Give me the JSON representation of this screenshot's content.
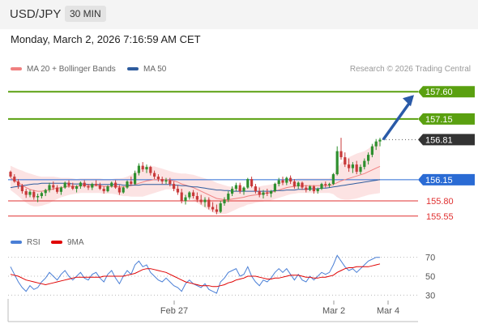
{
  "header": {
    "pair": "USD/JPY",
    "timeframe": "30 MIN"
  },
  "timestamp": "Monday, March 2, 2026 7:16:59 AM CET",
  "legend": {
    "ma20": {
      "label": "MA 20 + Bollinger Bands",
      "color": "#f08080"
    },
    "ma50": {
      "label": "MA 50",
      "color": "#2e5c9e"
    }
  },
  "credit": "Research © 2026 Trading Central",
  "rsi_legend": {
    "rsi": {
      "label": "RSI",
      "color": "#4a7fd6"
    },
    "ma9": {
      "label": "9MA",
      "color": "#e00000"
    }
  },
  "chart_data": {
    "type": "candlestick",
    "price_axis": {
      "min": 155.4,
      "max": 157.75
    },
    "levels": [
      {
        "label": "157.60",
        "value": 157.6,
        "role": "resistance",
        "color": "#5aa010"
      },
      {
        "label": "157.15",
        "value": 157.15,
        "role": "resistance",
        "color": "#5aa010"
      },
      {
        "label": "156.81",
        "value": 156.81,
        "role": "last",
        "color": "#333333"
      },
      {
        "label": "156.15",
        "value": 156.15,
        "role": "pivot",
        "color": "#2a6bd4"
      },
      {
        "label": "155.80",
        "value": 155.8,
        "role": "support",
        "color": "#e03030"
      },
      {
        "label": "155.55",
        "value": 155.55,
        "role": "support",
        "color": "#e03030"
      }
    ],
    "arrow": {
      "from": 156.81,
      "to": 157.6,
      "color": "#2a5aa8"
    },
    "x_ticks": [
      "Feb 27",
      "Mar 2",
      "Mar 4"
    ],
    "candles": [
      [
        156.28,
        156.3,
        156.18,
        156.2
      ],
      [
        156.2,
        156.24,
        156.1,
        156.12
      ],
      [
        156.12,
        156.16,
        156.0,
        156.05
      ],
      [
        156.05,
        156.08,
        155.92,
        155.96
      ],
      [
        155.96,
        156.0,
        155.85,
        155.9
      ],
      [
        155.9,
        155.98,
        155.86,
        155.95
      ],
      [
        155.95,
        155.98,
        155.82,
        155.86
      ],
      [
        155.86,
        155.92,
        155.78,
        155.88
      ],
      [
        155.88,
        155.95,
        155.84,
        155.93
      ],
      [
        155.93,
        156.0,
        155.88,
        155.98
      ],
      [
        155.98,
        156.1,
        155.94,
        156.06
      ],
      [
        156.06,
        156.12,
        155.98,
        156.02
      ],
      [
        156.02,
        156.06,
        155.92,
        155.95
      ],
      [
        155.95,
        156.04,
        155.9,
        156.02
      ],
      [
        156.02,
        156.12,
        156.0,
        156.1
      ],
      [
        156.1,
        156.14,
        156.02,
        156.05
      ],
      [
        156.05,
        156.1,
        155.98,
        156.0
      ],
      [
        156.0,
        156.06,
        155.94,
        156.04
      ],
      [
        156.04,
        156.12,
        156.0,
        156.1
      ],
      [
        156.1,
        156.14,
        156.02,
        156.04
      ],
      [
        156.04,
        156.08,
        155.98,
        156.02
      ],
      [
        156.02,
        156.1,
        155.98,
        156.08
      ],
      [
        156.08,
        156.14,
        156.04,
        156.06
      ],
      [
        156.06,
        156.1,
        155.98,
        156.0
      ],
      [
        156.0,
        156.04,
        155.92,
        155.96
      ],
      [
        155.96,
        156.06,
        155.94,
        156.04
      ],
      [
        156.04,
        156.12,
        156.02,
        156.1
      ],
      [
        156.1,
        156.14,
        156.0,
        156.02
      ],
      [
        156.02,
        156.06,
        155.9,
        155.94
      ],
      [
        155.94,
        156.04,
        155.92,
        156.02
      ],
      [
        156.02,
        156.14,
        156.0,
        156.12
      ],
      [
        156.12,
        156.2,
        156.06,
        156.08
      ],
      [
        156.08,
        156.3,
        156.06,
        156.26
      ],
      [
        156.26,
        156.42,
        156.22,
        156.38
      ],
      [
        156.38,
        156.44,
        156.28,
        156.32
      ],
      [
        156.32,
        156.4,
        156.26,
        156.36
      ],
      [
        156.36,
        156.38,
        156.22,
        156.26
      ],
      [
        156.26,
        156.3,
        156.16,
        156.2
      ],
      [
        156.2,
        156.24,
        156.12,
        156.16
      ],
      [
        156.16,
        156.2,
        156.08,
        156.12
      ],
      [
        156.12,
        156.18,
        156.08,
        156.14
      ],
      [
        156.14,
        156.18,
        156.04,
        156.08
      ],
      [
        156.08,
        156.12,
        155.96,
        156.0
      ],
      [
        156.0,
        156.06,
        155.9,
        155.94
      ],
      [
        155.94,
        156.0,
        155.76,
        155.8
      ],
      [
        155.8,
        155.9,
        155.74,
        155.86
      ],
      [
        155.86,
        155.96,
        155.82,
        155.94
      ],
      [
        155.94,
        155.98,
        155.84,
        155.88
      ],
      [
        155.88,
        155.94,
        155.78,
        155.82
      ],
      [
        155.82,
        155.9,
        155.74,
        155.78
      ],
      [
        155.78,
        155.86,
        155.7,
        155.82
      ],
      [
        155.82,
        155.86,
        155.66,
        155.7
      ],
      [
        155.7,
        155.78,
        155.62,
        155.66
      ],
      [
        155.66,
        155.74,
        155.58,
        155.62
      ],
      [
        155.62,
        155.8,
        155.6,
        155.76
      ],
      [
        155.76,
        155.86,
        155.72,
        155.82
      ],
      [
        155.82,
        155.96,
        155.78,
        155.92
      ],
      [
        155.92,
        156.04,
        155.88,
        156.0
      ],
      [
        156.0,
        156.1,
        155.96,
        156.06
      ],
      [
        156.06,
        156.1,
        155.92,
        155.96
      ],
      [
        155.96,
        156.04,
        155.9,
        156.02
      ],
      [
        156.02,
        156.18,
        156.0,
        156.16
      ],
      [
        156.16,
        156.2,
        156.02,
        156.04
      ],
      [
        156.04,
        156.08,
        155.92,
        155.96
      ],
      [
        155.96,
        156.02,
        155.86,
        155.9
      ],
      [
        155.9,
        155.98,
        155.84,
        155.94
      ],
      [
        155.94,
        156.0,
        155.88,
        155.92
      ],
      [
        155.92,
        155.98,
        155.86,
        155.96
      ],
      [
        155.96,
        156.1,
        155.94,
        156.08
      ],
      [
        156.08,
        156.18,
        156.04,
        156.14
      ],
      [
        156.14,
        156.2,
        156.06,
        156.1
      ],
      [
        156.1,
        156.2,
        156.06,
        156.18
      ],
      [
        156.18,
        156.22,
        156.08,
        156.12
      ],
      [
        156.12,
        156.16,
        156.0,
        156.04
      ],
      [
        156.04,
        156.12,
        156.0,
        156.1
      ],
      [
        156.1,
        156.12,
        155.98,
        156.02
      ],
      [
        156.02,
        156.06,
        155.94,
        155.98
      ],
      [
        155.98,
        156.06,
        155.96,
        156.04
      ],
      [
        156.04,
        156.06,
        155.92,
        155.96
      ],
      [
        155.96,
        156.02,
        155.92,
        156.0
      ],
      [
        156.0,
        156.1,
        155.98,
        156.08
      ],
      [
        156.08,
        156.12,
        156.02,
        156.06
      ],
      [
        156.06,
        156.1,
        156.02,
        156.08
      ],
      [
        156.08,
        156.26,
        156.06,
        156.24
      ],
      [
        156.24,
        156.7,
        156.22,
        156.62
      ],
      [
        156.62,
        156.84,
        156.48,
        156.52
      ],
      [
        156.52,
        156.6,
        156.36,
        156.4
      ],
      [
        156.4,
        156.5,
        156.28,
        156.34
      ],
      [
        156.34,
        156.44,
        156.26,
        156.4
      ],
      [
        156.4,
        156.46,
        156.24,
        156.28
      ],
      [
        156.28,
        156.4,
        156.24,
        156.36
      ],
      [
        156.36,
        156.5,
        156.32,
        156.46
      ],
      [
        156.46,
        156.6,
        156.4,
        156.56
      ],
      [
        156.56,
        156.74,
        156.52,
        156.7
      ],
      [
        156.7,
        156.82,
        156.64,
        156.78
      ],
      [
        156.78,
        156.84,
        156.7,
        156.81
      ]
    ],
    "ma20": [
      156.18,
      156.14,
      156.1,
      156.06,
      156.02,
      155.99,
      155.97,
      155.96,
      155.96,
      155.97,
      155.98,
      156.0,
      156.01,
      156.02,
      156.03,
      156.04,
      156.04,
      156.04,
      156.05,
      156.05,
      156.05,
      156.05,
      156.05,
      156.05,
      156.04,
      156.04,
      156.04,
      156.04,
      156.03,
      156.03,
      156.04,
      156.05,
      156.07,
      156.09,
      156.11,
      156.13,
      156.14,
      156.15,
      156.15,
      156.15,
      156.15,
      156.14,
      156.13,
      156.11,
      156.08,
      156.06,
      156.04,
      156.02,
      155.99,
      155.96,
      155.93,
      155.9,
      155.87,
      155.84,
      155.83,
      155.82,
      155.82,
      155.83,
      155.84,
      155.85,
      155.86,
      155.88,
      155.89,
      155.9,
      155.91,
      155.92,
      155.93,
      155.94,
      155.96,
      155.98,
      156.0,
      156.02,
      156.03,
      156.04,
      156.05,
      156.05,
      156.05,
      156.05,
      156.05,
      156.05,
      156.05,
      156.05,
      156.05,
      156.07,
      156.1,
      156.13,
      156.15,
      156.17,
      156.19,
      156.21,
      156.23,
      156.25,
      156.28,
      156.31,
      156.34,
      156.37
    ],
    "ma50": [
      156.02,
      156.03,
      156.04,
      156.05,
      156.06,
      156.07,
      156.08,
      156.08,
      156.09,
      156.09,
      156.09,
      156.09,
      156.09,
      156.09,
      156.09,
      156.09,
      156.08,
      156.08,
      156.08,
      156.08,
      156.07,
      156.07,
      156.07,
      156.07,
      156.07,
      156.07,
      156.07,
      156.07,
      156.07,
      156.06,
      156.06,
      156.06,
      156.06,
      156.06,
      156.07,
      156.07,
      156.07,
      156.07,
      156.07,
      156.07,
      156.07,
      156.07,
      156.06,
      156.06,
      156.05,
      156.05,
      156.04,
      156.03,
      156.03,
      156.02,
      156.01,
      156.0,
      155.99,
      155.98,
      155.98,
      155.97,
      155.97,
      155.96,
      155.96,
      155.96,
      155.96,
      155.96,
      155.96,
      155.96,
      155.96,
      155.96,
      155.96,
      155.96,
      155.97,
      155.97,
      155.97,
      155.98,
      155.98,
      155.98,
      155.99,
      155.99,
      155.99,
      156.0,
      156.0,
      156.0,
      156.01,
      156.01,
      156.02,
      156.03,
      156.04,
      156.05,
      156.06,
      156.07,
      156.08,
      156.09,
      156.1,
      156.11,
      156.12,
      156.13,
      156.14,
      156.15
    ],
    "band_width": [
      0.2,
      0.21,
      0.22,
      0.24,
      0.25,
      0.26,
      0.26,
      0.25,
      0.24,
      0.23,
      0.22,
      0.2,
      0.18,
      0.16,
      0.15,
      0.14,
      0.13,
      0.12,
      0.12,
      0.12,
      0.12,
      0.12,
      0.12,
      0.12,
      0.12,
      0.12,
      0.12,
      0.13,
      0.14,
      0.15,
      0.16,
      0.18,
      0.2,
      0.22,
      0.24,
      0.24,
      0.23,
      0.22,
      0.2,
      0.18,
      0.16,
      0.15,
      0.14,
      0.15,
      0.17,
      0.19,
      0.2,
      0.21,
      0.22,
      0.23,
      0.24,
      0.25,
      0.26,
      0.26,
      0.25,
      0.24,
      0.22,
      0.2,
      0.18,
      0.16,
      0.15,
      0.14,
      0.14,
      0.13,
      0.13,
      0.13,
      0.13,
      0.13,
      0.13,
      0.13,
      0.13,
      0.13,
      0.12,
      0.12,
      0.12,
      0.12,
      0.12,
      0.12,
      0.12,
      0.12,
      0.12,
      0.12,
      0.12,
      0.16,
      0.24,
      0.3,
      0.33,
      0.35,
      0.36,
      0.37,
      0.37,
      0.37,
      0.38,
      0.4,
      0.42,
      0.44
    ],
    "rsi": {
      "axis": {
        "min": 20,
        "max": 80,
        "ticks": [
          30,
          50,
          70
        ]
      },
      "rsi": [
        60,
        52,
        44,
        38,
        34,
        40,
        36,
        38,
        44,
        48,
        54,
        50,
        46,
        52,
        56,
        50,
        46,
        50,
        54,
        48,
        46,
        52,
        54,
        48,
        44,
        52,
        56,
        48,
        42,
        50,
        56,
        52,
        62,
        66,
        60,
        62,
        54,
        50,
        46,
        44,
        48,
        44,
        40,
        38,
        34,
        42,
        46,
        42,
        40,
        38,
        42,
        36,
        34,
        32,
        44,
        48,
        54,
        56,
        58,
        50,
        52,
        60,
        50,
        44,
        40,
        46,
        44,
        48,
        54,
        58,
        54,
        58,
        52,
        46,
        52,
        46,
        44,
        50,
        46,
        50,
        54,
        52,
        54,
        62,
        72,
        66,
        60,
        56,
        58,
        54,
        58,
        62,
        66,
        68,
        70,
        70
      ],
      "ma9": [
        52,
        51,
        50,
        48,
        46,
        45,
        44,
        43,
        42,
        41,
        42,
        43,
        44,
        45,
        46,
        47,
        48,
        49,
        49,
        49,
        49,
        49,
        49,
        49,
        50,
        50,
        50,
        50,
        50,
        50,
        51,
        52,
        53,
        55,
        57,
        58,
        58,
        57,
        56,
        55,
        54,
        52,
        50,
        48,
        46,
        44,
        43,
        42,
        41,
        40,
        40,
        40,
        39,
        39,
        40,
        41,
        43,
        44,
        46,
        47,
        48,
        50,
        50,
        50,
        49,
        48,
        47,
        47,
        48,
        48,
        49,
        50,
        51,
        51,
        51,
        50,
        49,
        49,
        48,
        48,
        49,
        49,
        50,
        51,
        54,
        56,
        58,
        59,
        59,
        60,
        60,
        60,
        60,
        61,
        62,
        63
      ]
    }
  }
}
